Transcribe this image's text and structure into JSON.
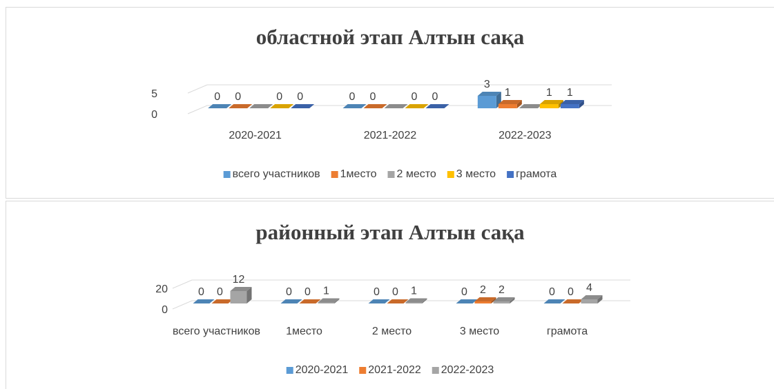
{
  "chart_data": [
    {
      "type": "bar3d",
      "title": "областной этап Алтын сақа",
      "categories": [
        "2020-2021",
        "2021-2022",
        "2022-2023"
      ],
      "series": [
        {
          "name": "всего участников",
          "color": "#5b9bd5",
          "values": [
            0,
            0,
            3
          ],
          "show_labels": true
        },
        {
          "name": "1место",
          "color": "#ed7d31",
          "values": [
            0,
            0,
            1
          ],
          "show_labels": true
        },
        {
          "name": "2 место",
          "color": "#a5a5a5",
          "values": [
            0,
            0,
            0
          ],
          "show_labels": false
        },
        {
          "name": "3 место",
          "color": "#ffc000",
          "values": [
            0,
            0,
            1
          ],
          "show_labels": true
        },
        {
          "name": "грамота",
          "color": "#4472c4",
          "values": [
            0,
            0,
            1
          ],
          "show_labels": true
        }
      ],
      "ylim": [
        0,
        5
      ],
      "yticks": [
        0,
        5
      ],
      "grid": true,
      "legend": "bottom"
    },
    {
      "type": "bar3d",
      "title": "районный этап Алтын сақа",
      "categories": [
        "всего участников",
        "1место",
        "2 место",
        "3 место",
        "грамота"
      ],
      "series": [
        {
          "name": "2020-2021",
          "color": "#5b9bd5",
          "values": [
            0,
            0,
            0,
            0,
            0
          ],
          "show_labels": true
        },
        {
          "name": "2021-2022",
          "color": "#ed7d31",
          "values": [
            0,
            0,
            0,
            2,
            0
          ],
          "show_labels": true
        },
        {
          "name": "2022-2023",
          "color": "#a5a5a5",
          "values": [
            12,
            1,
            1,
            2,
            4
          ],
          "show_labels": true
        }
      ],
      "ylim": [
        0,
        20
      ],
      "yticks": [
        0,
        20
      ],
      "grid": true,
      "legend": "bottom"
    }
  ]
}
